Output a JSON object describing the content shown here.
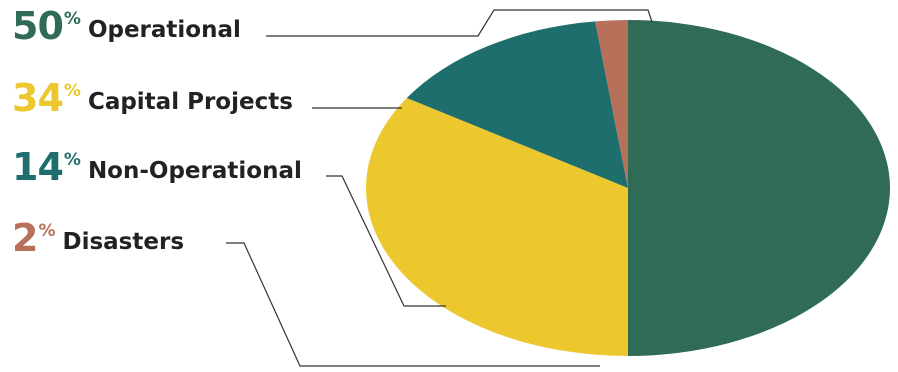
{
  "chart_data": {
    "type": "pie",
    "slices": [
      {
        "label": "Operational",
        "percent_number": "50",
        "percent_sign": "%",
        "value": 50,
        "color": "#2f6b55"
      },
      {
        "label": "Capital Projects",
        "percent_number": "34",
        "percent_sign": "%",
        "value": 34,
        "color": "#ecc72e"
      },
      {
        "label": "Non-Operational",
        "percent_number": "14",
        "percent_sign": "%",
        "value": 14,
        "color": "#1f6e6e"
      },
      {
        "label": "Disasters",
        "percent_number": "2",
        "percent_sign": "%",
        "value": 2,
        "color": "#b7715a"
      }
    ],
    "legend_placement": "left",
    "start_angle": "12 o'clock",
    "direction": "clockwise"
  }
}
